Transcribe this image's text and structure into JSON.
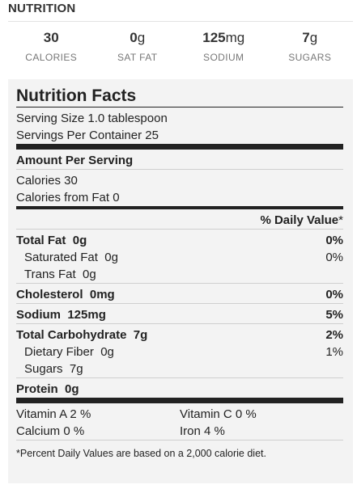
{
  "header": {
    "title": "NUTRITION"
  },
  "summary": [
    {
      "value": "30",
      "unit": "",
      "label": "CALORIES"
    },
    {
      "value": "0",
      "unit": "g",
      "label": "SAT FAT"
    },
    {
      "value": "125",
      "unit": "mg",
      "label": "SODIUM"
    },
    {
      "value": "7",
      "unit": "g",
      "label": "SUGARS"
    }
  ],
  "facts": {
    "title": "Nutrition Facts",
    "serving_size": "Serving Size  1.0 tablespoon",
    "servings_per_container": "Servings Per Container  25",
    "amount_per_serving": "Amount Per Serving",
    "calories": "Calories  30",
    "calories_from_fat": "Calories from Fat  0",
    "daily_value_header": "% Daily Value",
    "daily_value_mark": "*",
    "rows": {
      "total_fat": {
        "label": "Total Fat",
        "amount": "0g",
        "pct": "0%"
      },
      "saturated_fat": {
        "label": "Saturated Fat",
        "amount": "0g",
        "pct": "0%"
      },
      "trans_fat": {
        "label": "Trans Fat",
        "amount": "0g"
      },
      "cholesterol": {
        "label": "Cholesterol",
        "amount": "0mg",
        "pct": "0%"
      },
      "sodium": {
        "label": "Sodium",
        "amount": "125mg",
        "pct": "5%"
      },
      "total_carbohydrate": {
        "label": "Total Carbohydrate",
        "amount": "7g",
        "pct": "2%"
      },
      "dietary_fiber": {
        "label": "Dietary Fiber",
        "amount": "0g",
        "pct": "1%"
      },
      "sugars": {
        "label": "Sugars",
        "amount": "7g"
      },
      "protein": {
        "label": "Protein",
        "amount": "0g"
      }
    },
    "vitamins": [
      [
        "Vitamin A  2 %",
        "Vitamin C  0 %"
      ],
      [
        "Calcium  0 %",
        "Iron  4 %"
      ]
    ],
    "footnote": "*Percent Daily Values are based on a 2,000 calorie diet."
  }
}
